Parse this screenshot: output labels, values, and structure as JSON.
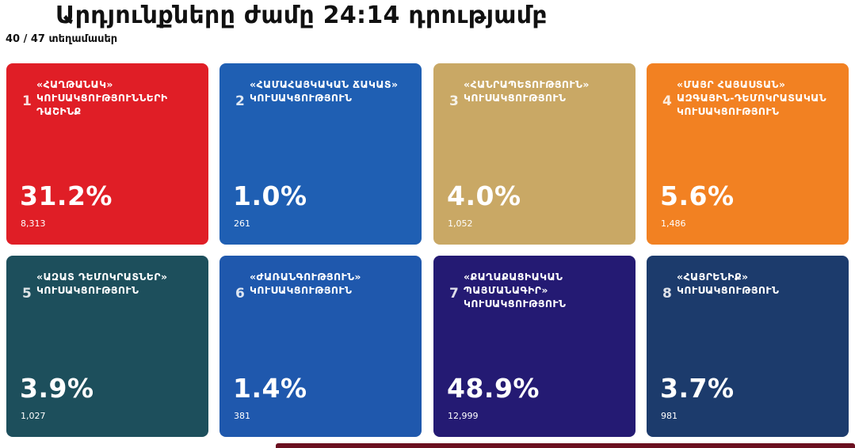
{
  "header": {
    "title": "Արդյունքները ժամը 24:14 դրությամբ",
    "precincts": "40 / 47 տեղամասեր"
  },
  "chart_data": {
    "type": "table",
    "title": "Արդյունքները ժամը 24:14 դրությամբ",
    "subtitle": "40 / 47 տեղամասեր",
    "parties": [
      {
        "number": "1",
        "name": "«ՀԱՂԹԱՆԱԿ» ԿՈՒՍԱԿՑՈՒԹՅՈՒՆՆԵՐԻ ԴԱՇԻՆՔ",
        "percent": 31.2,
        "percent_label": "31.2%",
        "votes": 8313,
        "votes_label": "8,313",
        "color": "#e01e26"
      },
      {
        "number": "2",
        "name": "«ՀԱՄԱՀԱՅԿԱԿԱՆ ՃԱԿԱՏ» ԿՈՒՍԱԿՑՈՒԹՅՈՒՆ",
        "percent": 1.0,
        "percent_label": "1.0%",
        "votes": 261,
        "votes_label": "261",
        "color": "#1f5fb3"
      },
      {
        "number": "3",
        "name": "«ՀԱՆՐԱՊԵՏՈՒԹՅՈՒՆ» ԿՈՒՍԱԿՑՈՒԹՅՈՒՆ",
        "percent": 4.0,
        "percent_label": "4.0%",
        "votes": 1052,
        "votes_label": "1,052",
        "color": "#c9a865"
      },
      {
        "number": "4",
        "name": "«ՄԱՅՐ ՀԱՅԱՍՏԱՆ» ԱԶԳԱՅԻՆ-ԴԵՄՈԿՐԱՏԱԿԱՆ ԿՈՒՍԱԿՑՈՒԹՅՈՒՆ",
        "percent": 5.6,
        "percent_label": "5.6%",
        "votes": 1486,
        "votes_label": "1,486",
        "color": "#f28122"
      },
      {
        "number": "5",
        "name": "«ԱԶԱՏ ԴԵՄՈԿՐԱՏՆԵՐ» ԿՈՒՍԱԿՑՈՒԹՅՈՒՆ",
        "percent": 3.9,
        "percent_label": "3.9%",
        "votes": 1027,
        "votes_label": "1,027",
        "color": "#1d4f5c"
      },
      {
        "number": "6",
        "name": "«ԺԱՌԱՆԳՈՒԹՅՈՒՆ» ԿՈՒՍԱԿՑՈՒԹՅՈՒՆ",
        "percent": 1.4,
        "percent_label": "1.4%",
        "votes": 381,
        "votes_label": "381",
        "color": "#1f58ad"
      },
      {
        "number": "7",
        "name": "«ՔԱՂԱՔԱՑԻԱԿԱՆ ՊԱՅՄԱՆԱԳԻՐ» ԿՈՒՍԱԿՑՈՒԹՅՈՒՆ",
        "percent": 48.9,
        "percent_label": "48.9%",
        "votes": 12999,
        "votes_label": "12,999",
        "color": "#241a73"
      },
      {
        "number": "8",
        "name": "«ՀԱՅՐԵՆԻՔ» ԿՈՒՍԱԿՑՈՒԹՅՈՒՆ",
        "percent": 3.7,
        "percent_label": "3.7%",
        "votes": 981,
        "votes_label": "981",
        "color": "#1c3b6c"
      }
    ]
  }
}
